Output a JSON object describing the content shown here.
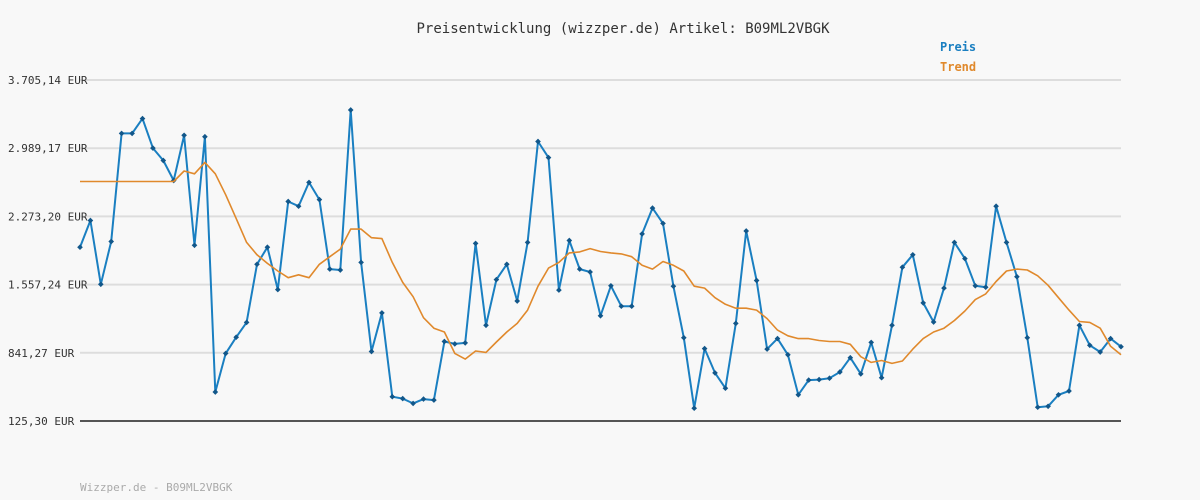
{
  "chart_data": {
    "type": "line",
    "title": "Preisentwicklung (wizzper.de) Artikel: B09ML2VBGK",
    "footer": "Wizzper.de - B09ML2VBGK",
    "xlabel": "",
    "ylabel": "",
    "ylim": [
      125.3,
      3705.14
    ],
    "y_ticks": [
      {
        "value": 125.3,
        "label": "125,30 EUR"
      },
      {
        "value": 841.27,
        "label": "841,27 EUR"
      },
      {
        "value": 1557.24,
        "label": "1.557,24 EUR"
      },
      {
        "value": 2273.2,
        "label": "2.273,20 EUR"
      },
      {
        "value": 2989.17,
        "label": "2.989,17 EUR"
      },
      {
        "value": 3705.14,
        "label": "3.705,14 EUR"
      }
    ],
    "grid": true,
    "legend_position": "top-right",
    "series": [
      {
        "name": "Preis",
        "color": "#1a7fc1",
        "markers": true,
        "values": [
          1950,
          2230,
          1560,
          2010,
          3145,
          3145,
          3300,
          2990,
          2860,
          2650,
          3125,
          1970,
          3110,
          430,
          835,
          1005,
          1160,
          1770,
          1950,
          1505,
          2430,
          2380,
          2630,
          2450,
          1720,
          1710,
          3390,
          1790,
          855,
          1260,
          380,
          360,
          310,
          355,
          345,
          960,
          935,
          945,
          1990,
          1130,
          1610,
          1770,
          1385,
          2000,
          3060,
          2890,
          1500,
          2020,
          1720,
          1690,
          1230,
          1545,
          1330,
          1330,
          2090,
          2360,
          2200,
          1540,
          1000,
          260,
          885,
          630,
          470,
          1150,
          2120,
          1600,
          880,
          990,
          820,
          400,
          555,
          560,
          575,
          640,
          790,
          620,
          950,
          580,
          1130,
          1740,
          1870,
          1365,
          1165,
          1520,
          2000,
          1830,
          1545,
          1530,
          2380,
          2000,
          1640,
          1000,
          270,
          280,
          400,
          440,
          1130,
          920,
          850,
          990,
          905
        ]
      },
      {
        "name": "Trend",
        "color": "#e0892c",
        "markers": false,
        "values": [
          2640,
          2640,
          2640,
          2640,
          2640,
          2640,
          2640,
          2640,
          2640,
          2640,
          2750,
          2720,
          2840,
          2720,
          2500,
          2250,
          2000,
          1870,
          1780,
          1700,
          1630,
          1660,
          1630,
          1770,
          1850,
          1930,
          2140,
          2140,
          2050,
          2040,
          1790,
          1580,
          1430,
          1210,
          1100,
          1060,
          835,
          775,
          860,
          845,
          955,
          1060,
          1150,
          1290,
          1540,
          1730,
          1790,
          1890,
          1900,
          1935,
          1905,
          1890,
          1880,
          1850,
          1760,
          1720,
          1800,
          1760,
          1700,
          1540,
          1520,
          1420,
          1350,
          1310,
          1310,
          1290,
          1200,
          1080,
          1020,
          990,
          990,
          970,
          960,
          960,
          930,
          800,
          740,
          760,
          730,
          755,
          880,
          990,
          1060,
          1100,
          1180,
          1280,
          1400,
          1460,
          1590,
          1700,
          1720,
          1710,
          1650,
          1550,
          1420,
          1290,
          1170,
          1160,
          1100,
          910,
          820
        ]
      }
    ]
  }
}
